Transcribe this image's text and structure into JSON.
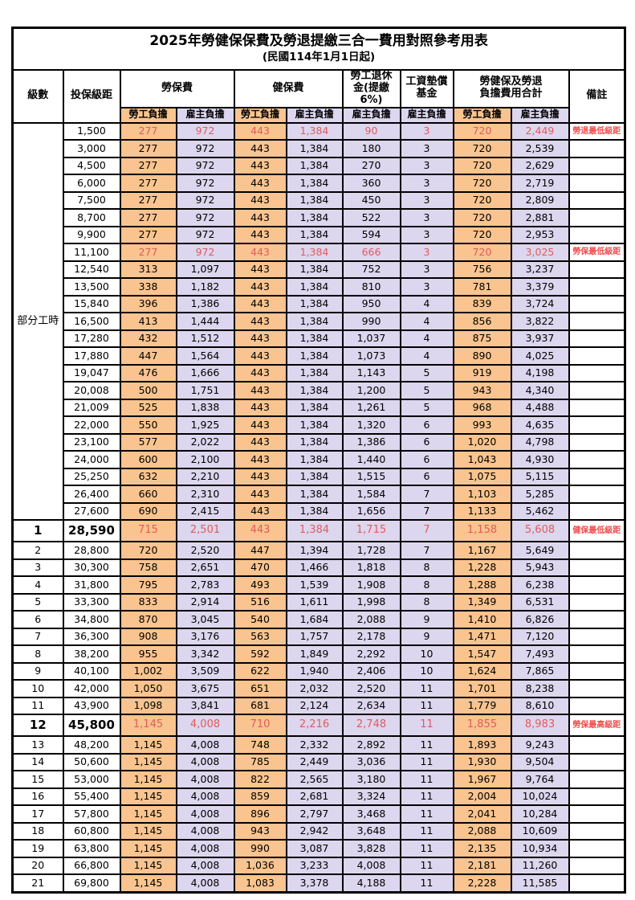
{
  "title": "2025年勞健保保費及勞退提繳三合一費用對照參考用表",
  "subtitle": "(民國114年1月1日起)",
  "colors": {
    "employee_fill": "#f9c48f",
    "employer_fill": "#dcd6ee",
    "highlight_value_red": "#e05c5c",
    "remark_red": "#ef4b4b",
    "grid": "#000000"
  },
  "header": {
    "level": "級數",
    "salary": "投保級距",
    "labor_insurance": "勞保費",
    "health_insurance": "健保費",
    "pension": "勞工退休\n金(提繳6%)",
    "wage_fund": "工資墊償\n基金",
    "total": "勞健保及勞退\n負擔費用合計",
    "remark": "備註",
    "employee": "勞工負擔",
    "employer": "雇主負擔"
  },
  "part_time_label": "部分工時",
  "part_time_rowspan": 23,
  "rows": [
    {
      "level": "",
      "salary": "1,500",
      "values": [
        "277",
        "972",
        "443",
        "1,384",
        "90",
        "3",
        "720",
        "2,449"
      ],
      "remark": "勞退最低級距",
      "red": true,
      "big": false
    },
    {
      "level": "",
      "salary": "3,000",
      "values": [
        "277",
        "972",
        "443",
        "1,384",
        "180",
        "3",
        "720",
        "2,539"
      ],
      "remark": "",
      "red": false,
      "big": false
    },
    {
      "level": "",
      "salary": "4,500",
      "values": [
        "277",
        "972",
        "443",
        "1,384",
        "270",
        "3",
        "720",
        "2,629"
      ],
      "remark": "",
      "red": false,
      "big": false
    },
    {
      "level": "",
      "salary": "6,000",
      "values": [
        "277",
        "972",
        "443",
        "1,384",
        "360",
        "3",
        "720",
        "2,719"
      ],
      "remark": "",
      "red": false,
      "big": false
    },
    {
      "level": "",
      "salary": "7,500",
      "values": [
        "277",
        "972",
        "443",
        "1,384",
        "450",
        "3",
        "720",
        "2,809"
      ],
      "remark": "",
      "red": false,
      "big": false
    },
    {
      "level": "",
      "salary": "8,700",
      "values": [
        "277",
        "972",
        "443",
        "1,384",
        "522",
        "3",
        "720",
        "2,881"
      ],
      "remark": "",
      "red": false,
      "big": false
    },
    {
      "level": "",
      "salary": "9,900",
      "values": [
        "277",
        "972",
        "443",
        "1,384",
        "594",
        "3",
        "720",
        "2,953"
      ],
      "remark": "",
      "red": false,
      "big": false
    },
    {
      "level": "",
      "salary": "11,100",
      "values": [
        "277",
        "972",
        "443",
        "1,384",
        "666",
        "3",
        "720",
        "3,025"
      ],
      "remark": "勞保最低級距",
      "red": true,
      "big": false
    },
    {
      "level": "",
      "salary": "12,540",
      "values": [
        "313",
        "1,097",
        "443",
        "1,384",
        "752",
        "3",
        "756",
        "3,237"
      ],
      "remark": "",
      "red": false,
      "big": false
    },
    {
      "level": "",
      "salary": "13,500",
      "values": [
        "338",
        "1,182",
        "443",
        "1,384",
        "810",
        "3",
        "781",
        "3,379"
      ],
      "remark": "",
      "red": false,
      "big": false
    },
    {
      "level": "",
      "salary": "15,840",
      "values": [
        "396",
        "1,386",
        "443",
        "1,384",
        "950",
        "4",
        "839",
        "3,724"
      ],
      "remark": "",
      "red": false,
      "big": false
    },
    {
      "level": "",
      "salary": "16,500",
      "values": [
        "413",
        "1,444",
        "443",
        "1,384",
        "990",
        "4",
        "856",
        "3,822"
      ],
      "remark": "",
      "red": false,
      "big": false
    },
    {
      "level": "",
      "salary": "17,280",
      "values": [
        "432",
        "1,512",
        "443",
        "1,384",
        "1,037",
        "4",
        "875",
        "3,937"
      ],
      "remark": "",
      "red": false,
      "big": false
    },
    {
      "level": "",
      "salary": "17,880",
      "values": [
        "447",
        "1,564",
        "443",
        "1,384",
        "1,073",
        "4",
        "890",
        "4,025"
      ],
      "remark": "",
      "red": false,
      "big": false
    },
    {
      "level": "",
      "salary": "19,047",
      "values": [
        "476",
        "1,666",
        "443",
        "1,384",
        "1,143",
        "5",
        "919",
        "4,198"
      ],
      "remark": "",
      "red": false,
      "big": false
    },
    {
      "level": "",
      "salary": "20,008",
      "values": [
        "500",
        "1,751",
        "443",
        "1,384",
        "1,200",
        "5",
        "943",
        "4,340"
      ],
      "remark": "",
      "red": false,
      "big": false
    },
    {
      "level": "",
      "salary": "21,009",
      "values": [
        "525",
        "1,838",
        "443",
        "1,384",
        "1,261",
        "5",
        "968",
        "4,488"
      ],
      "remark": "",
      "red": false,
      "big": false
    },
    {
      "level": "",
      "salary": "22,000",
      "values": [
        "550",
        "1,925",
        "443",
        "1,384",
        "1,320",
        "6",
        "993",
        "4,635"
      ],
      "remark": "",
      "red": false,
      "big": false
    },
    {
      "level": "",
      "salary": "23,100",
      "values": [
        "577",
        "2,022",
        "443",
        "1,384",
        "1,386",
        "6",
        "1,020",
        "4,798"
      ],
      "remark": "",
      "red": false,
      "big": false
    },
    {
      "level": "",
      "salary": "24,000",
      "values": [
        "600",
        "2,100",
        "443",
        "1,384",
        "1,440",
        "6",
        "1,043",
        "4,930"
      ],
      "remark": "",
      "red": false,
      "big": false
    },
    {
      "level": "",
      "salary": "25,250",
      "values": [
        "632",
        "2,210",
        "443",
        "1,384",
        "1,515",
        "6",
        "1,075",
        "5,115"
      ],
      "remark": "",
      "red": false,
      "big": false
    },
    {
      "level": "",
      "salary": "26,400",
      "values": [
        "660",
        "2,310",
        "443",
        "1,384",
        "1,584",
        "7",
        "1,103",
        "5,285"
      ],
      "remark": "",
      "red": false,
      "big": false
    },
    {
      "level": "",
      "salary": "27,600",
      "values": [
        "690",
        "2,415",
        "443",
        "1,384",
        "1,656",
        "7",
        "1,133",
        "5,462"
      ],
      "remark": "",
      "red": false,
      "big": false
    },
    {
      "level": "1",
      "salary": "28,590",
      "values": [
        "715",
        "2,501",
        "443",
        "1,384",
        "1,715",
        "7",
        "1,158",
        "5,608"
      ],
      "remark": "健保最低級距",
      "red": true,
      "big": true
    },
    {
      "level": "2",
      "salary": "28,800",
      "values": [
        "720",
        "2,520",
        "447",
        "1,394",
        "1,728",
        "7",
        "1,167",
        "5,649"
      ],
      "remark": "",
      "red": false,
      "big": false
    },
    {
      "level": "3",
      "salary": "30,300",
      "values": [
        "758",
        "2,651",
        "470",
        "1,466",
        "1,818",
        "8",
        "1,228",
        "5,943"
      ],
      "remark": "",
      "red": false,
      "big": false
    },
    {
      "level": "4",
      "salary": "31,800",
      "values": [
        "795",
        "2,783",
        "493",
        "1,539",
        "1,908",
        "8",
        "1,288",
        "6,238"
      ],
      "remark": "",
      "red": false,
      "big": false
    },
    {
      "level": "5",
      "salary": "33,300",
      "values": [
        "833",
        "2,914",
        "516",
        "1,611",
        "1,998",
        "8",
        "1,349",
        "6,531"
      ],
      "remark": "",
      "red": false,
      "big": false
    },
    {
      "level": "6",
      "salary": "34,800",
      "values": [
        "870",
        "3,045",
        "540",
        "1,684",
        "2,088",
        "9",
        "1,410",
        "6,826"
      ],
      "remark": "",
      "red": false,
      "big": false
    },
    {
      "level": "7",
      "salary": "36,300",
      "values": [
        "908",
        "3,176",
        "563",
        "1,757",
        "2,178",
        "9",
        "1,471",
        "7,120"
      ],
      "remark": "",
      "red": false,
      "big": false
    },
    {
      "level": "8",
      "salary": "38,200",
      "values": [
        "955",
        "3,342",
        "592",
        "1,849",
        "2,292",
        "10",
        "1,547",
        "7,493"
      ],
      "remark": "",
      "red": false,
      "big": false
    },
    {
      "level": "9",
      "salary": "40,100",
      "values": [
        "1,002",
        "3,509",
        "622",
        "1,940",
        "2,406",
        "10",
        "1,624",
        "7,865"
      ],
      "remark": "",
      "red": false,
      "big": false
    },
    {
      "level": "10",
      "salary": "42,000",
      "values": [
        "1,050",
        "3,675",
        "651",
        "2,032",
        "2,520",
        "11",
        "1,701",
        "8,238"
      ],
      "remark": "",
      "red": false,
      "big": false
    },
    {
      "level": "11",
      "salary": "43,900",
      "values": [
        "1,098",
        "3,841",
        "681",
        "2,124",
        "2,634",
        "11",
        "1,779",
        "8,610"
      ],
      "remark": "",
      "red": false,
      "big": false
    },
    {
      "level": "12",
      "salary": "45,800",
      "values": [
        "1,145",
        "4,008",
        "710",
        "2,216",
        "2,748",
        "11",
        "1,855",
        "8,983"
      ],
      "remark": "勞保最高級距",
      "red": true,
      "big": true
    },
    {
      "level": "13",
      "salary": "48,200",
      "values": [
        "1,145",
        "4,008",
        "748",
        "2,332",
        "2,892",
        "11",
        "1,893",
        "9,243"
      ],
      "remark": "",
      "red": false,
      "big": false
    },
    {
      "level": "14",
      "salary": "50,600",
      "values": [
        "1,145",
        "4,008",
        "785",
        "2,449",
        "3,036",
        "11",
        "1,930",
        "9,504"
      ],
      "remark": "",
      "red": false,
      "big": false
    },
    {
      "level": "15",
      "salary": "53,000",
      "values": [
        "1,145",
        "4,008",
        "822",
        "2,565",
        "3,180",
        "11",
        "1,967",
        "9,764"
      ],
      "remark": "",
      "red": false,
      "big": false
    },
    {
      "level": "16",
      "salary": "55,400",
      "values": [
        "1,145",
        "4,008",
        "859",
        "2,681",
        "3,324",
        "11",
        "2,004",
        "10,024"
      ],
      "remark": "",
      "red": false,
      "big": false
    },
    {
      "level": "17",
      "salary": "57,800",
      "values": [
        "1,145",
        "4,008",
        "896",
        "2,797",
        "3,468",
        "11",
        "2,041",
        "10,284"
      ],
      "remark": "",
      "red": false,
      "big": false
    },
    {
      "level": "18",
      "salary": "60,800",
      "values": [
        "1,145",
        "4,008",
        "943",
        "2,942",
        "3,648",
        "11",
        "2,088",
        "10,609"
      ],
      "remark": "",
      "red": false,
      "big": false
    },
    {
      "level": "19",
      "salary": "63,800",
      "values": [
        "1,145",
        "4,008",
        "990",
        "3,087",
        "3,828",
        "11",
        "2,135",
        "10,934"
      ],
      "remark": "",
      "red": false,
      "big": false
    },
    {
      "level": "20",
      "salary": "66,800",
      "values": [
        "1,145",
        "4,008",
        "1,036",
        "3,233",
        "4,008",
        "11",
        "2,181",
        "11,260"
      ],
      "remark": "",
      "red": false,
      "big": false
    },
    {
      "level": "21",
      "salary": "69,800",
      "values": [
        "1,145",
        "4,008",
        "1,083",
        "3,378",
        "4,188",
        "11",
        "2,228",
        "11,585"
      ],
      "remark": "",
      "red": false,
      "big": false
    }
  ]
}
